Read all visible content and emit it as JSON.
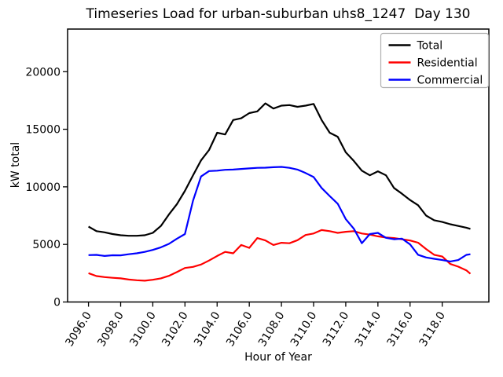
{
  "chart_data": {
    "type": "line",
    "title": "Timeseries Load for urban-suburban uhs8_1247  Day 130",
    "xlabel": "Hour of Year",
    "ylabel": "kW total",
    "xlim": [
      3094.7,
      3120.9
    ],
    "ylim": [
      0,
      23700
    ],
    "grid": false,
    "legend_position": "upper right",
    "xticks": {
      "values": [
        3096,
        3098,
        3100,
        3102,
        3104,
        3106,
        3108,
        3110,
        3112,
        3114,
        3116,
        3118
      ],
      "labels": [
        "3096.0",
        "3098.0",
        "3100.0",
        "3102.0",
        "3104.0",
        "3106.0",
        "3108.0",
        "3110.0",
        "3112.0",
        "3114.0",
        "3116.0",
        "3118.0"
      ]
    },
    "yticks": {
      "values": [
        0,
        5000,
        10000,
        15000,
        20000
      ],
      "labels": [
        "0",
        "5000",
        "10000",
        "15000",
        "20000"
      ]
    },
    "x": [
      3096,
      3096.5,
      3097,
      3097.5,
      3098,
      3098.5,
      3099,
      3099.5,
      3100,
      3100.5,
      3101,
      3101.5,
      3102,
      3102.5,
      3103,
      3103.5,
      3104,
      3104.5,
      3105,
      3105.5,
      3106,
      3106.5,
      3107,
      3107.5,
      3108,
      3108.5,
      3109,
      3109.5,
      3110,
      3110.5,
      3111,
      3111.5,
      3112,
      3112.5,
      3113,
      3113.5,
      3114,
      3114.5,
      3115,
      3115.5,
      3116,
      3116.5,
      3117,
      3117.5,
      3118,
      3118.5,
      3119,
      3119.5,
      3119.75
    ],
    "series": [
      {
        "name": "Total",
        "color": "#000000",
        "values": [
          6550,
          6150,
          6050,
          5900,
          5800,
          5750,
          5750,
          5800,
          6000,
          6600,
          7600,
          8500,
          9650,
          11000,
          12300,
          13200,
          14700,
          14550,
          15800,
          15950,
          16400,
          16550,
          17250,
          16800,
          17050,
          17100,
          16950,
          17050,
          17200,
          15800,
          14700,
          14350,
          13000,
          12250,
          11400,
          11000,
          11350,
          11000,
          9900,
          9400,
          8850,
          8400,
          7500,
          7100,
          6950,
          6750,
          6600,
          6450,
          6350
        ]
      },
      {
        "name": "Residential",
        "color": "#ff0000",
        "values": [
          2500,
          2250,
          2160,
          2100,
          2050,
          1950,
          1890,
          1850,
          1930,
          2050,
          2270,
          2600,
          2950,
          3050,
          3250,
          3600,
          4000,
          4350,
          4230,
          4950,
          4700,
          5550,
          5350,
          4950,
          5140,
          5100,
          5370,
          5820,
          5950,
          6250,
          6150,
          6000,
          6100,
          6150,
          5950,
          5850,
          5700,
          5600,
          5550,
          5450,
          5340,
          5150,
          4600,
          4100,
          3950,
          3300,
          3070,
          2750,
          2450
        ]
      },
      {
        "name": "Commercial",
        "color": "#0000ff",
        "values": [
          4070,
          4090,
          4000,
          4060,
          4050,
          4150,
          4230,
          4350,
          4520,
          4750,
          5050,
          5500,
          5900,
          8800,
          10900,
          11370,
          11400,
          11480,
          11500,
          11550,
          11600,
          11650,
          11660,
          11700,
          11730,
          11650,
          11500,
          11200,
          10850,
          9900,
          9200,
          8530,
          7200,
          6360,
          5100,
          5900,
          6000,
          5570,
          5450,
          5500,
          5000,
          4100,
          3870,
          3750,
          3640,
          3520,
          3640,
          4090,
          4150
        ]
      }
    ]
  }
}
